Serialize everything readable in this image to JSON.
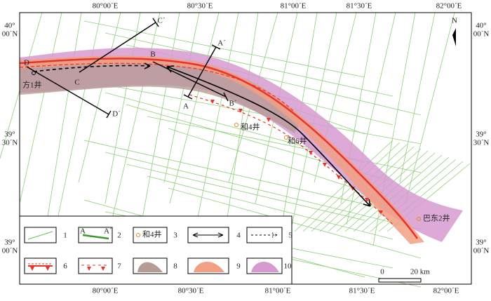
{
  "north": "N",
  "axes": {
    "top": [
      "80°00´E",
      "80°30´E",
      "81°00´E",
      "81°30´E",
      "82°00´E"
    ],
    "bottom": [
      "80°00´E",
      "80°30´E",
      "81°00´E",
      "81°30´E",
      "82°00´E"
    ],
    "left": [
      {
        "deg": "40°",
        "min": "00´N"
      },
      {
        "deg": "39°",
        "min": "30´N"
      },
      {
        "deg": "39°",
        "min": "00´N"
      }
    ],
    "right": [
      {
        "deg": "40°",
        "min": "00´N"
      },
      {
        "deg": "39°",
        "min": "30´N"
      },
      {
        "deg": "39°",
        "min": "00´N"
      }
    ]
  },
  "sections": [
    {
      "start": "A",
      "end": "A´"
    },
    {
      "start": "B",
      "end": "B´"
    },
    {
      "start": "C",
      "end": "C´"
    },
    {
      "start": "D",
      "end": "D´"
    }
  ],
  "wells": [
    "方1井",
    "和4井",
    "和6井",
    "巴东2井"
  ],
  "legend": {
    "numbers": [
      "1",
      "2",
      "3",
      "4",
      "5",
      "6",
      "7",
      "8",
      "9",
      "10"
    ],
    "sample_section": [
      "A",
      "A´"
    ],
    "sample_well": "和4井"
  },
  "scale": {
    "start": "0",
    "end": "20 km"
  }
}
